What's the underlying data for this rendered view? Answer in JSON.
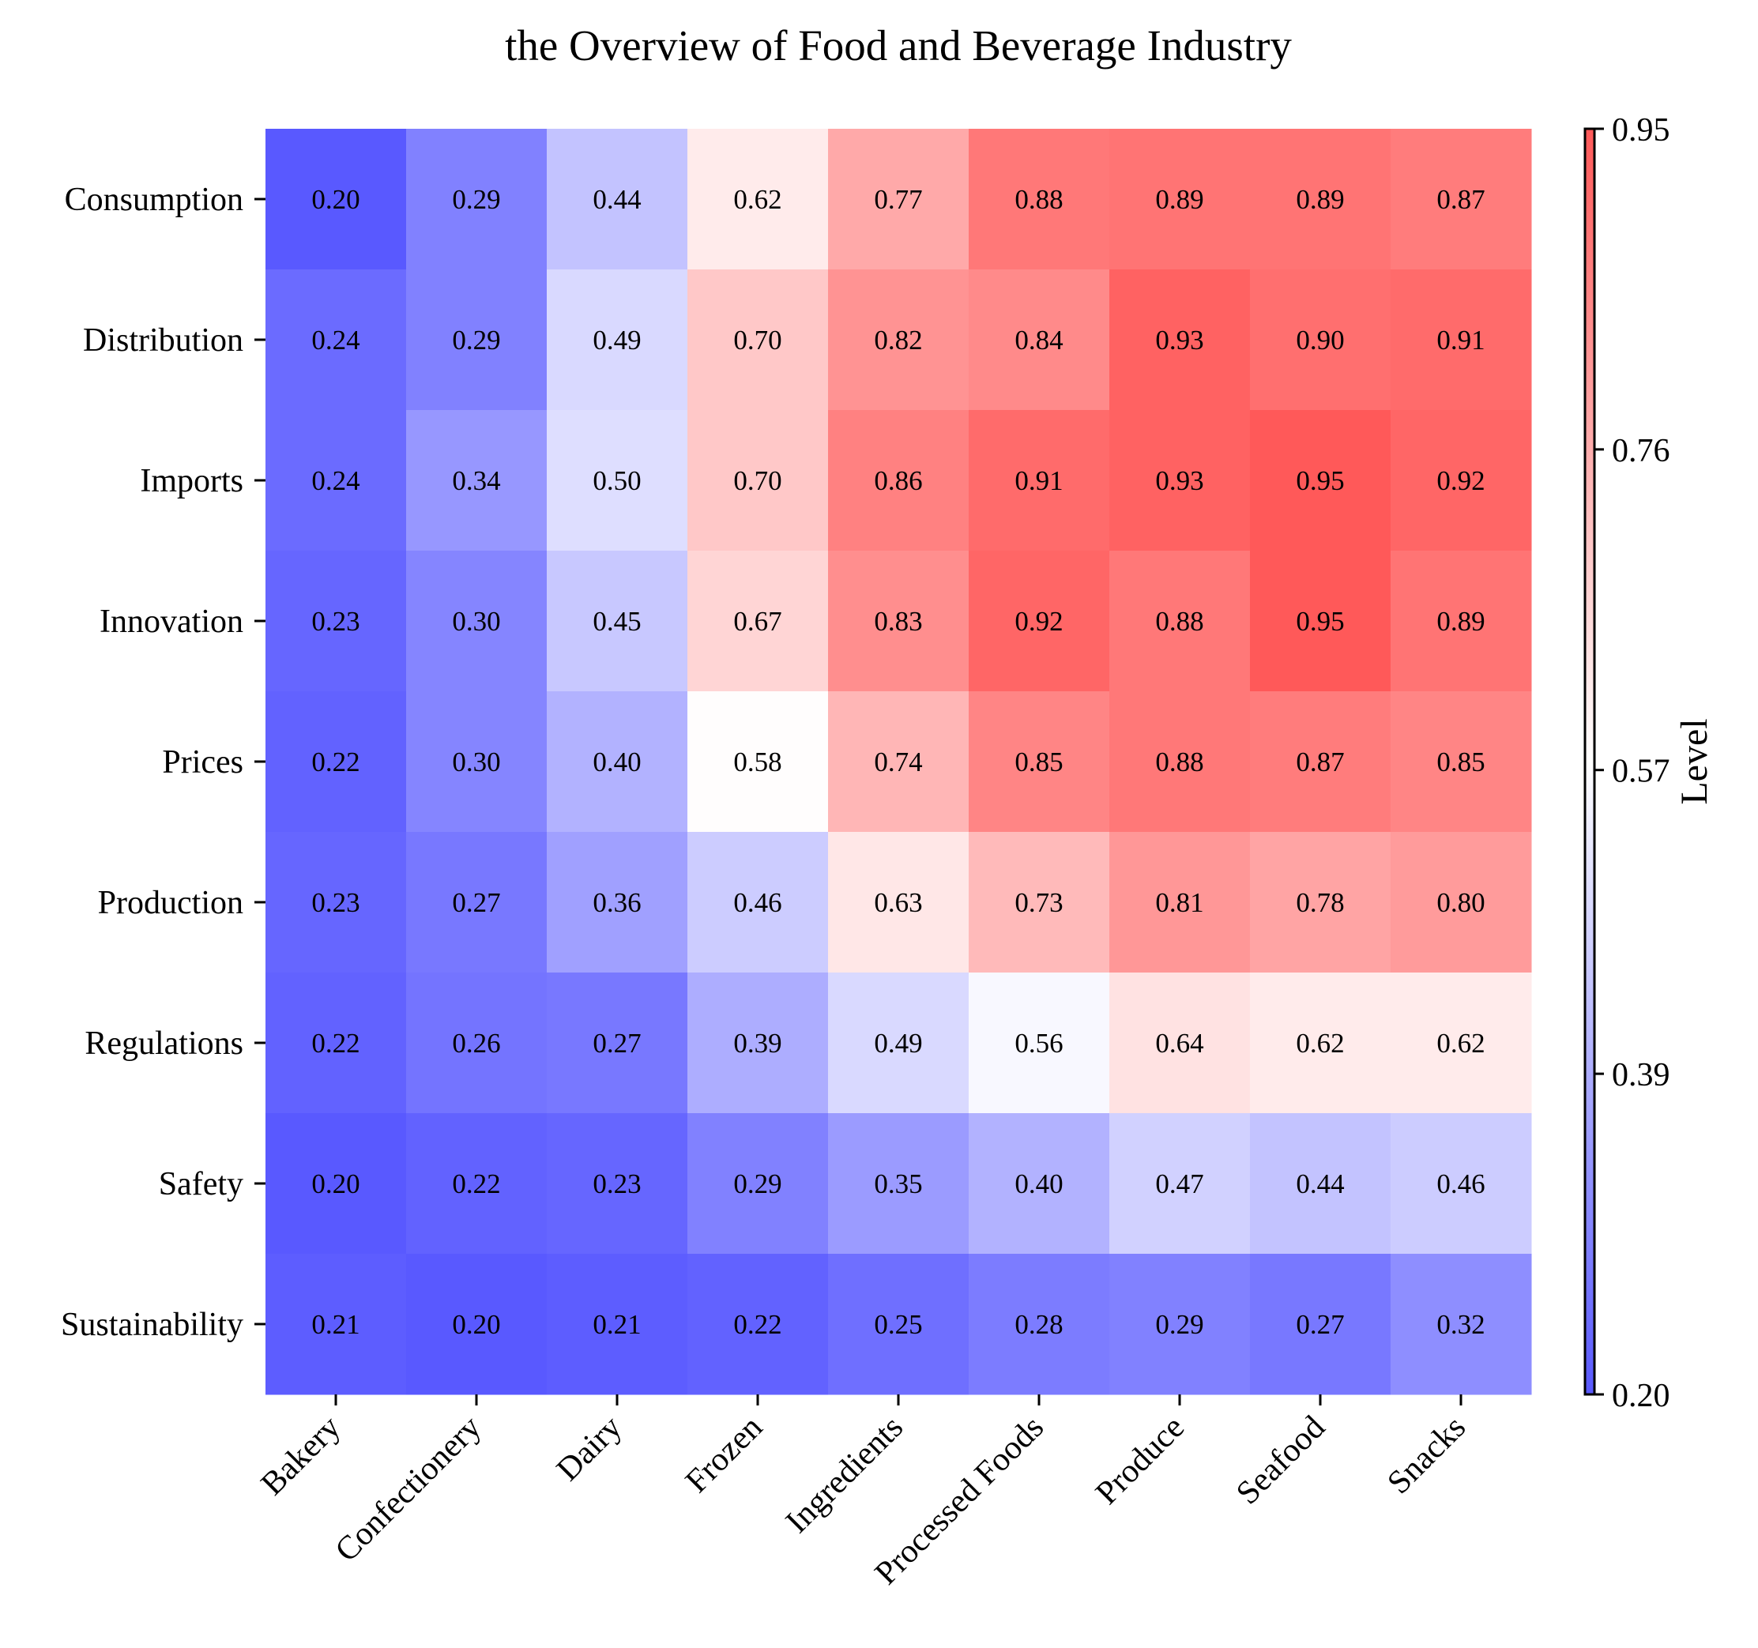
{
  "chart_data": {
    "type": "heatmap",
    "title": "the Overview of Food and Beverage Industry",
    "xlabel": "",
    "ylabel": "",
    "x_categories": [
      "Bakery",
      "Confectionery",
      "Dairy",
      "Frozen",
      "Ingredients",
      "Processed Foods",
      "Produce",
      "Seafood",
      "Snacks"
    ],
    "y_categories": [
      "Consumption",
      "Distribution",
      "Imports",
      "Innovation",
      "Prices",
      "Production",
      "Regulations",
      "Safety",
      "Sustainability"
    ],
    "values": [
      [
        0.2,
        0.29,
        0.44,
        0.62,
        0.77,
        0.88,
        0.89,
        0.89,
        0.87
      ],
      [
        0.24,
        0.29,
        0.49,
        0.7,
        0.82,
        0.84,
        0.93,
        0.9,
        0.91
      ],
      [
        0.24,
        0.34,
        0.5,
        0.7,
        0.86,
        0.91,
        0.93,
        0.95,
        0.92
      ],
      [
        0.23,
        0.3,
        0.45,
        0.67,
        0.83,
        0.92,
        0.88,
        0.95,
        0.89
      ],
      [
        0.22,
        0.3,
        0.4,
        0.58,
        0.74,
        0.85,
        0.88,
        0.87,
        0.85
      ],
      [
        0.23,
        0.27,
        0.36,
        0.46,
        0.63,
        0.73,
        0.81,
        0.78,
        0.8
      ],
      [
        0.22,
        0.26,
        0.27,
        0.39,
        0.49,
        0.56,
        0.64,
        0.62,
        0.62
      ],
      [
        0.2,
        0.22,
        0.23,
        0.29,
        0.35,
        0.4,
        0.47,
        0.44,
        0.46
      ],
      [
        0.21,
        0.2,
        0.21,
        0.22,
        0.25,
        0.28,
        0.29,
        0.27,
        0.32
      ]
    ],
    "value_format": "0.00",
    "colormap": [
      "#5959ff",
      "#ffffff",
      "#ff5959"
    ],
    "colorbar": {
      "label": "Level",
      "range": [
        0.2,
        0.95
      ],
      "ticks": [
        "0.20",
        "0.39",
        "0.57",
        "0.76",
        "0.95"
      ]
    },
    "grid": false,
    "cell_labels": true
  }
}
